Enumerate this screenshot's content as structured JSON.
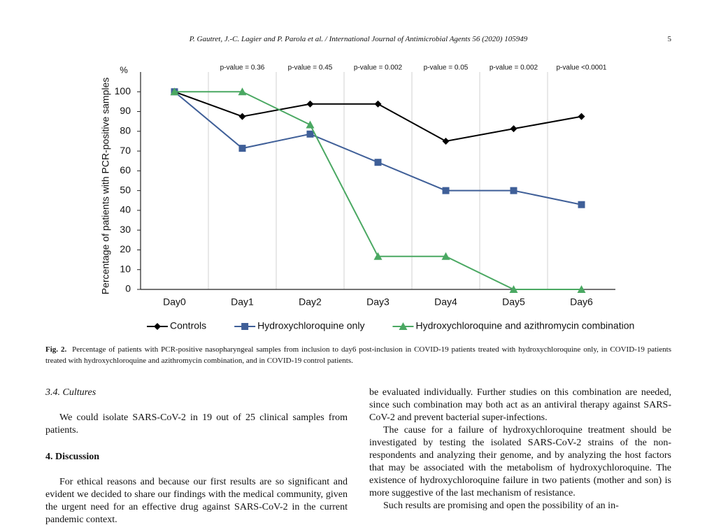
{
  "header": {
    "citation": "P. Gautret, J.-C. Lagier and P. Parola et al. / International Journal of Antimicrobial Agents 56 (2020) 105949",
    "page_number": "5"
  },
  "chart_data": {
    "type": "line",
    "unit_label": "%",
    "y_label": "Percentage of patients with PCR-positive samples",
    "categories": [
      "Day0",
      "Day1",
      "Day2",
      "Day3",
      "Day4",
      "Day5",
      "Day6"
    ],
    "annotations": [
      null,
      "p-value = 0.36",
      "p-value = 0.45",
      "p-value = 0.002",
      "p-value = 0.05",
      "p-value = 0.002",
      "p-value <0.0001"
    ],
    "series": [
      {
        "name": "Controls",
        "color": "#000000",
        "marker": "diamond",
        "values": [
          100,
          87.5,
          93.8,
          93.8,
          75,
          81.3,
          87.5
        ]
      },
      {
        "name": "Hydroxychloroquine only",
        "color": "#3f5f98",
        "marker": "square",
        "values": [
          100,
          71.4,
          78.6,
          64.3,
          50,
          50,
          42.9
        ]
      },
      {
        "name": "Hydroxychloroquine and azithromycin combination",
        "color": "#4aa862",
        "marker": "triangle",
        "values": [
          100,
          100,
          83.3,
          16.7,
          16.7,
          0,
          0
        ]
      }
    ],
    "ylim": [
      0,
      110
    ],
    "yticks": [
      0,
      10,
      20,
      30,
      40,
      50,
      60,
      70,
      80,
      90,
      100
    ],
    "grid": true,
    "legend": "bottom"
  },
  "figure": {
    "label": "Fig. 2.",
    "caption": "Percentage of patients with PCR-positive nasopharyngeal samples from inclusion to day6 post-inclusion in COVID-19 patients treated with hydroxychloroquine only, in COVID-19 patients treated with hydroxychloroquine and azithromycin combination, and in COVID-19 control patients."
  },
  "left_column": {
    "section_heading": "3.4. Cultures",
    "paragraph_1": "We could isolate SARS-CoV-2 in 19 out of 25 clinical samples from patients.",
    "discussion_heading": "4. Discussion",
    "paragraph_2": "For ethical reasons and because our first results are so significant and evident we decided to share our findings with the medical community, given the urgent need for an effective drug against SARS-CoV-2 in the current pandemic context."
  },
  "right_column": {
    "paragraph_1": "be evaluated individually. Further studies on this combination are needed, since such combination may both act as an antiviral therapy against SARS-CoV-2 and prevent bacterial super-infections.",
    "paragraph_2": "The cause for a failure of hydroxychloroquine treatment should be investigated by testing the isolated SARS-CoV-2 strains of the non-respondents and analyzing their genome, and by analyzing the host factors that may be associated with the metabolism of hydroxychloroquine. The existence of hydroxychloroquine failure in two patients (mother and son) is more suggestive of the last mechanism of resistance.",
    "paragraph_3": "Such results are promising and open the possibility of an in-"
  }
}
